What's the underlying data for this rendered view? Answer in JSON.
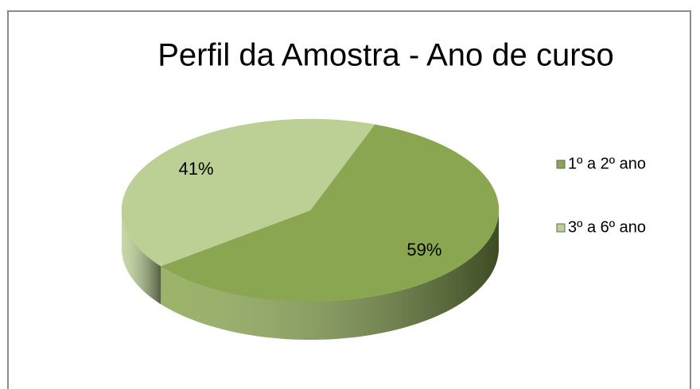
{
  "chart_data": {
    "type": "pie",
    "title": "Perfil da Amostra - Ano de curso",
    "categories": [
      "1º a 2º ano",
      "3º a 6º ano"
    ],
    "values": [
      59,
      41
    ],
    "value_labels": [
      "59%",
      "41%"
    ],
    "colors": [
      "#8aa650",
      "#bccf94"
    ],
    "legend": "right"
  }
}
